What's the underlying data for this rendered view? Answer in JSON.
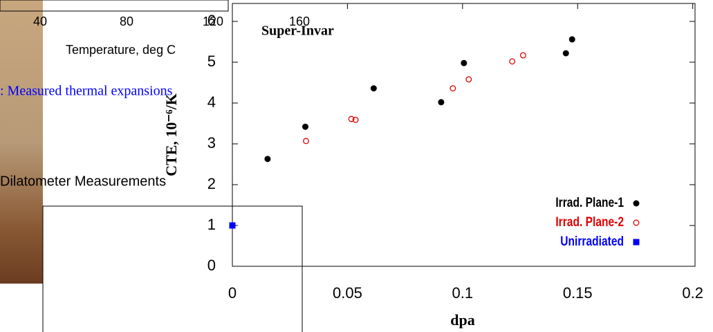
{
  "chart_data": {
    "type": "scatter",
    "title": "Super-Invar",
    "x_label": "dpa",
    "y_label": "CTE, 10⁻⁶/K",
    "xlim": [
      0,
      0.201
    ],
    "ylim": [
      0,
      6.44
    ],
    "xticks": [
      0,
      0.05,
      0.1,
      0.15,
      0.2
    ],
    "yticks": [
      0,
      1,
      2,
      3,
      4,
      5,
      6
    ],
    "legend": "lower right",
    "series": [
      {
        "name": "Irrad. Plane-1",
        "color": "#000000",
        "marker": "dot",
        "x": [
          0.0153,
          0.0317,
          0.0614,
          0.0907,
          0.1006,
          0.1449,
          0.1476
        ],
        "values": [
          2.63,
          3.42,
          4.36,
          4.02,
          4.98,
          5.22,
          5.56
        ]
      },
      {
        "name": "Irrad. Plane-2",
        "color": "#e00000",
        "marker": "ring",
        "x": [
          0.032,
          0.0517,
          0.0535,
          0.0958,
          0.1027,
          0.1216,
          0.1263
        ],
        "values": [
          3.07,
          3.61,
          3.59,
          4.36,
          4.58,
          5.02,
          5.17
        ]
      },
      {
        "name": "Unirradiated",
        "color": "#0000ff",
        "marker": "square",
        "x": [
          0
        ],
        "values": [
          1.0
        ]
      }
    ]
  },
  "background": {
    "x_ticks": [
      "40",
      "80",
      "120",
      "160"
    ],
    "x_label": "Temperature, deg C",
    "caption": ": Measured thermal expansions",
    "panel_title": "Dilatometer Measurements"
  }
}
